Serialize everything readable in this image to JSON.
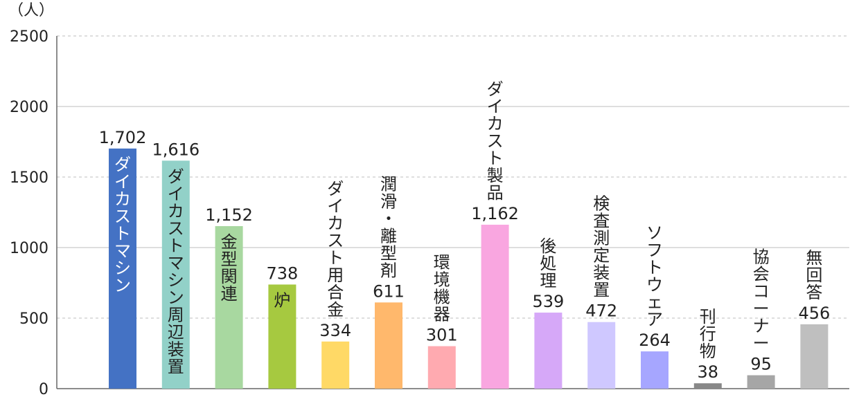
{
  "chart_data": {
    "type": "bar",
    "unit_label": "（人）",
    "ylim": [
      0,
      2500
    ],
    "yticks": [
      "0",
      "500",
      "1000",
      "1500",
      "2000",
      "2500"
    ],
    "grid": true,
    "categories": [
      "ダイカストマシン",
      "ダイカストマシン周辺装置",
      "金型関連",
      "炉",
      "ダイカスト用合金",
      "潤滑・離型剤",
      "環境機器",
      "ダイカスト製品",
      "後処理",
      "検査測定装置",
      "ソフトウェア",
      "刊行物",
      "協会コーナー",
      "無回答"
    ],
    "values": [
      1702,
      1616,
      1152,
      738,
      334,
      611,
      301,
      1162,
      539,
      472,
      264,
      38,
      95,
      456
    ],
    "value_labels": [
      "1,702",
      "1,616",
      "1,152",
      "738",
      "334",
      "611",
      "301",
      "1,162",
      "539",
      "472",
      "264",
      "38",
      "95",
      "456"
    ],
    "colors": [
      "#4472c4",
      "#92d1c8",
      "#a8d8a0",
      "#a6c940",
      "#ffd966",
      "#ffb86c",
      "#ffaab0",
      "#f9a6e0",
      "#d6a8f8",
      "#cfc8ff",
      "#a6a6ff",
      "#888888",
      "#a6a6a6",
      "#bfbfbf"
    ]
  }
}
